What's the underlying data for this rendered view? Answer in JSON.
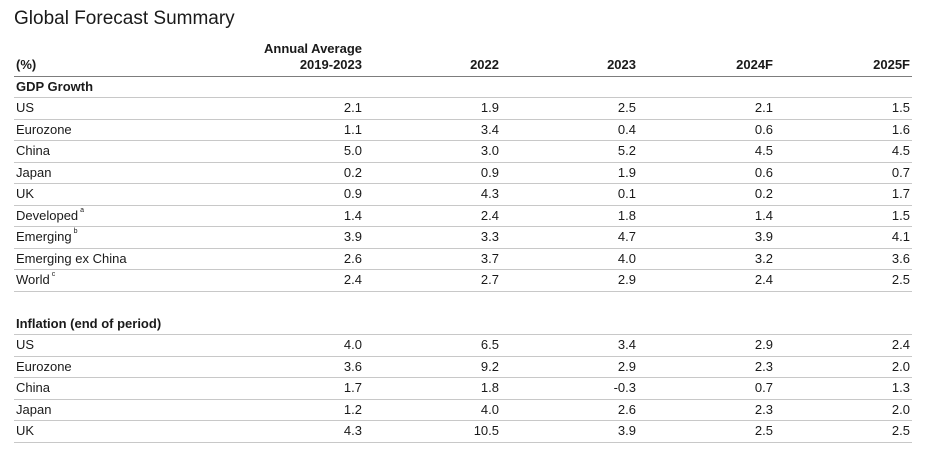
{
  "page": {
    "title": "Global Forecast Summary"
  },
  "table": {
    "headers": [
      "(%)",
      "Annual Average\n2019-2023",
      "2022",
      "2023",
      "2024F",
      "2025F"
    ],
    "sections": [
      {
        "title": "GDP Growth",
        "rows": [
          {
            "label": "US",
            "note": "",
            "values": [
              "2.1",
              "1.9",
              "2.5",
              "2.1",
              "1.5"
            ]
          },
          {
            "label": "Eurozone",
            "note": "",
            "values": [
              "1.1",
              "3.4",
              "0.4",
              "0.6",
              "1.6"
            ]
          },
          {
            "label": "China",
            "note": "",
            "values": [
              "5.0",
              "3.0",
              "5.2",
              "4.5",
              "4.5"
            ]
          },
          {
            "label": "Japan",
            "note": "",
            "values": [
              "0.2",
              "0.9",
              "1.9",
              "0.6",
              "0.7"
            ]
          },
          {
            "label": "UK",
            "note": "",
            "values": [
              "0.9",
              "4.3",
              "0.1",
              "0.2",
              "1.7"
            ]
          },
          {
            "label": "Developed",
            "note": "a",
            "values": [
              "1.4",
              "2.4",
              "1.8",
              "1.4",
              "1.5"
            ]
          },
          {
            "label": "Emerging",
            "note": "b",
            "values": [
              "3.9",
              "3.3",
              "4.7",
              "3.9",
              "4.1"
            ]
          },
          {
            "label": "Emerging ex China",
            "note": "",
            "values": [
              "2.6",
              "3.7",
              "4.0",
              "3.2",
              "3.6"
            ]
          },
          {
            "label": "World",
            "note": "c",
            "values": [
              "2.4",
              "2.7",
              "2.9",
              "2.4",
              "2.5"
            ]
          }
        ]
      },
      {
        "title": "Inflation (end of period)",
        "rows": [
          {
            "label": "US",
            "note": "",
            "values": [
              "4.0",
              "6.5",
              "3.4",
              "2.9",
              "2.4"
            ]
          },
          {
            "label": "Eurozone",
            "note": "",
            "values": [
              "3.6",
              "9.2",
              "2.9",
              "2.3",
              "2.0"
            ]
          },
          {
            "label": "China",
            "note": "",
            "values": [
              "1.7",
              "1.8",
              "-0.3",
              "0.7",
              "1.3"
            ]
          },
          {
            "label": "Japan",
            "note": "",
            "values": [
              "1.2",
              "4.0",
              "2.6",
              "2.3",
              "2.0"
            ]
          },
          {
            "label": "UK",
            "note": "",
            "values": [
              "4.3",
              "10.5",
              "3.9",
              "2.5",
              "2.5"
            ]
          }
        ]
      }
    ]
  },
  "chart_data": {
    "type": "table",
    "title": "Global Forecast Summary",
    "columns": [
      "(%)",
      "Annual Average 2019-2023",
      "2022",
      "2023",
      "2024F",
      "2025F"
    ],
    "sections": [
      {
        "title": "GDP Growth",
        "rows": [
          [
            "US",
            2.1,
            1.9,
            2.5,
            2.1,
            1.5
          ],
          [
            "Eurozone",
            1.1,
            3.4,
            0.4,
            0.6,
            1.6
          ],
          [
            "China",
            5.0,
            3.0,
            5.2,
            4.5,
            4.5
          ],
          [
            "Japan",
            0.2,
            0.9,
            1.9,
            0.6,
            0.7
          ],
          [
            "UK",
            0.9,
            4.3,
            0.1,
            0.2,
            1.7
          ],
          [
            "Developed",
            1.4,
            2.4,
            1.8,
            1.4,
            1.5
          ],
          [
            "Emerging",
            3.9,
            3.3,
            4.7,
            3.9,
            4.1
          ],
          [
            "Emerging ex China",
            2.6,
            3.7,
            4.0,
            3.2,
            3.6
          ],
          [
            "World",
            2.4,
            2.7,
            2.9,
            2.4,
            2.5
          ]
        ]
      },
      {
        "title": "Inflation (end of period)",
        "rows": [
          [
            "US",
            4.0,
            6.5,
            3.4,
            2.9,
            2.4
          ],
          [
            "Eurozone",
            3.6,
            9.2,
            2.9,
            2.3,
            2.0
          ],
          [
            "China",
            1.7,
            1.8,
            -0.3,
            0.7,
            1.3
          ],
          [
            "Japan",
            1.2,
            4.0,
            2.6,
            2.3,
            2.0
          ],
          [
            "UK",
            4.3,
            10.5,
            3.9,
            2.5,
            2.5
          ]
        ]
      }
    ]
  }
}
